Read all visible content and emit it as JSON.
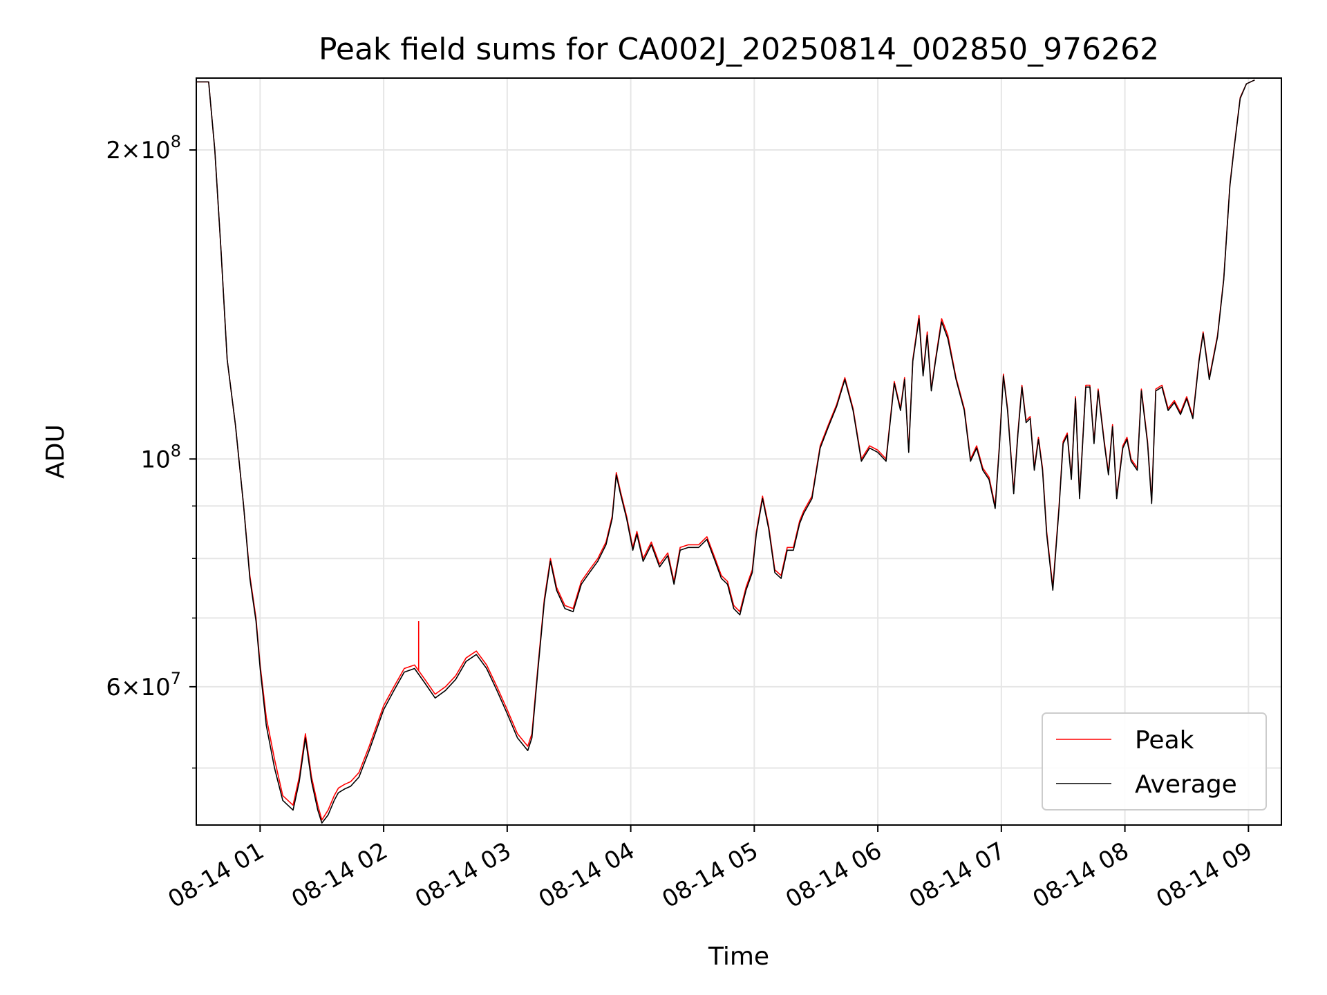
{
  "chart_data": {
    "type": "line",
    "title": "Peak field sums for CA002J_20250814_002850_976262",
    "xlabel": "Time",
    "ylabel": "ADU",
    "yscale": "log",
    "grid": true,
    "legend_position": "lower-right",
    "xlim": [
      "2025-08-14 00:29",
      "2025-08-14 09:16"
    ],
    "ylim": [
      44000000,
      235000000
    ],
    "x_ticks": [
      "08-14 01",
      "08-14 02",
      "08-14 03",
      "08-14 04",
      "08-14 05",
      "08-14 06",
      "08-14 07",
      "08-14 08",
      "08-14 09"
    ],
    "x_tick_times": [
      "2025-08-14 01:00",
      "2025-08-14 02:00",
      "2025-08-14 03:00",
      "2025-08-14 04:00",
      "2025-08-14 05:00",
      "2025-08-14 06:00",
      "2025-08-14 07:00",
      "2025-08-14 08:00",
      "2025-08-14 09:00"
    ],
    "y_major_ticks": [
      {
        "value": 200000000,
        "mantissa": "2",
        "exponent": "8"
      },
      {
        "value": 100000000,
        "mantissa": "",
        "exponent": "8"
      },
      {
        "value": 60000000,
        "mantissa": "6",
        "exponent": "7"
      }
    ],
    "y_minor_ticks": [
      50000000,
      70000000,
      80000000,
      90000000
    ],
    "times": [
      "2025-08-14 00:29",
      "2025-08-14 00:35",
      "2025-08-14 00:38",
      "2025-08-14 00:41",
      "2025-08-14 00:44",
      "2025-08-14 00:48",
      "2025-08-14 00:52",
      "2025-08-14 00:55",
      "2025-08-14 00:58",
      "2025-08-14 01:00",
      "2025-08-14 01:03",
      "2025-08-14 01:07",
      "2025-08-14 01:11",
      "2025-08-14 01:16",
      "2025-08-14 01:19",
      "2025-08-14 01:22",
      "2025-08-14 01:25",
      "2025-08-14 01:28",
      "2025-08-14 01:30",
      "2025-08-14 01:33",
      "2025-08-14 01:36",
      "2025-08-14 01:38",
      "2025-08-14 01:41",
      "2025-08-14 01:44",
      "2025-08-14 01:48",
      "2025-08-14 01:53",
      "2025-08-14 02:00",
      "2025-08-14 02:05",
      "2025-08-14 02:10",
      "2025-08-14 02:15",
      "2025-08-14 02:20",
      "2025-08-14 02:25",
      "2025-08-14 02:30",
      "2025-08-14 02:35",
      "2025-08-14 02:40",
      "2025-08-14 02:45",
      "2025-08-14 02:50",
      "2025-08-14 02:55",
      "2025-08-14 03:00",
      "2025-08-14 03:05",
      "2025-08-14 03:10",
      "2025-08-14 03:12",
      "2025-08-14 03:15",
      "2025-08-14 03:18",
      "2025-08-14 03:21",
      "2025-08-14 03:24",
      "2025-08-14 03:28",
      "2025-08-14 03:32",
      "2025-08-14 03:36",
      "2025-08-14 03:40",
      "2025-08-14 03:44",
      "2025-08-14 03:48",
      "2025-08-14 03:51",
      "2025-08-14 03:53",
      "2025-08-14 03:55",
      "2025-08-14 03:58",
      "2025-08-14 04:01",
      "2025-08-14 04:03",
      "2025-08-14 04:06",
      "2025-08-14 04:10",
      "2025-08-14 04:14",
      "2025-08-14 04:18",
      "2025-08-14 04:21",
      "2025-08-14 04:24",
      "2025-08-14 04:28",
      "2025-08-14 04:33",
      "2025-08-14 04:37",
      "2025-08-14 04:41",
      "2025-08-14 04:44",
      "2025-08-14 04:47",
      "2025-08-14 04:50",
      "2025-08-14 04:53",
      "2025-08-14 04:56",
      "2025-08-14 04:59",
      "2025-08-14 05:01",
      "2025-08-14 05:04",
      "2025-08-14 05:07",
      "2025-08-14 05:10",
      "2025-08-14 05:13",
      "2025-08-14 05:16",
      "2025-08-14 05:19",
      "2025-08-14 05:22",
      "2025-08-14 05:24",
      "2025-08-14 05:28",
      "2025-08-14 05:32",
      "2025-08-14 05:36",
      "2025-08-14 05:40",
      "2025-08-14 05:44",
      "2025-08-14 05:48",
      "2025-08-14 05:52",
      "2025-08-14 05:56",
      "2025-08-14 06:00",
      "2025-08-14 06:04",
      "2025-08-14 06:08",
      "2025-08-14 06:11",
      "2025-08-14 06:13",
      "2025-08-14 06:15",
      "2025-08-14 06:17",
      "2025-08-14 06:20",
      "2025-08-14 06:22",
      "2025-08-14 06:24",
      "2025-08-14 06:26",
      "2025-08-14 06:28",
      "2025-08-14 06:31",
      "2025-08-14 06:34",
      "2025-08-14 06:38",
      "2025-08-14 06:42",
      "2025-08-14 06:45",
      "2025-08-14 06:48",
      "2025-08-14 06:51",
      "2025-08-14 06:54",
      "2025-08-14 06:57",
      "2025-08-14 06:59",
      "2025-08-14 07:01",
      "2025-08-14 07:03",
      "2025-08-14 07:06",
      "2025-08-14 07:08",
      "2025-08-14 07:10",
      "2025-08-14 07:12",
      "2025-08-14 07:14",
      "2025-08-14 07:16",
      "2025-08-14 07:18",
      "2025-08-14 07:20",
      "2025-08-14 07:22",
      "2025-08-14 07:25",
      "2025-08-14 07:28",
      "2025-08-14 07:30",
      "2025-08-14 07:32",
      "2025-08-14 07:34",
      "2025-08-14 07:36",
      "2025-08-14 07:38",
      "2025-08-14 07:41",
      "2025-08-14 07:43",
      "2025-08-14 07:45",
      "2025-08-14 07:47",
      "2025-08-14 07:50",
      "2025-08-14 07:52",
      "2025-08-14 07:54",
      "2025-08-14 07:56",
      "2025-08-14 07:59",
      "2025-08-14 08:01",
      "2025-08-14 08:03",
      "2025-08-14 08:06",
      "2025-08-14 08:08",
      "2025-08-14 08:11",
      "2025-08-14 08:13",
      "2025-08-14 08:15",
      "2025-08-14 08:18",
      "2025-08-14 08:21",
      "2025-08-14 08:24",
      "2025-08-14 08:27",
      "2025-08-14 08:30",
      "2025-08-14 08:33",
      "2025-08-14 08:36",
      "2025-08-14 08:38",
      "2025-08-14 08:41",
      "2025-08-14 08:45",
      "2025-08-14 08:48",
      "2025-08-14 08:51",
      "2025-08-14 08:53",
      "2025-08-14 08:56",
      "2025-08-14 08:59",
      "2025-08-14 09:03",
      "2025-08-14 09:08",
      "2025-08-14 09:16"
    ],
    "series": [
      {
        "name": "Peak",
        "color": "#ff0000",
        "values": [
          233000000,
          233000000,
          200000000,
          160000000,
          125000000,
          108000000,
          90000000,
          77000000,
          70000000,
          63000000,
          56000000,
          51000000,
          47000000,
          46000000,
          49000000,
          54000000,
          49000000,
          46000000,
          44500000,
          45500000,
          47000000,
          47800000,
          48200000,
          48500000,
          49500000,
          52500000,
          57500000,
          60000000,
          62500000,
          63000000,
          61000000,
          59000000,
          60000000,
          61500000,
          64000000,
          65000000,
          63000000,
          60000000,
          57000000,
          54000000,
          52500000,
          54000000,
          63000000,
          73000000,
          80000000,
          75000000,
          72000000,
          71500000,
          76000000,
          78000000,
          80000000,
          83000000,
          88000000,
          97000000,
          93000000,
          88000000,
          82000000,
          85000000,
          80000000,
          83000000,
          79000000,
          81000000,
          76000000,
          82000000,
          82500000,
          82500000,
          84000000,
          80000000,
          77000000,
          76000000,
          72000000,
          71000000,
          75000000,
          78000000,
          85000000,
          92000000,
          86000000,
          78000000,
          77000000,
          82000000,
          82000000,
          87000000,
          89000000,
          92000000,
          103000000,
          108000000,
          113000000,
          120000000,
          112000000,
          100000000,
          103000000,
          102000000,
          100000000,
          119000000,
          112000000,
          120000000,
          102000000,
          125000000,
          138000000,
          121000000,
          133000000,
          117000000,
          125000000,
          137000000,
          132000000,
          120000000,
          112000000,
          100000000,
          103000000,
          98000000,
          96000000,
          90000000,
          103000000,
          121000000,
          112000000,
          93000000,
          106000000,
          118000000,
          109000000,
          110000000,
          98000000,
          105000000,
          98000000,
          85000000,
          75000000,
          90000000,
          104000000,
          106000000,
          96000000,
          115000000,
          92000000,
          118000000,
          118000000,
          104000000,
          117000000,
          104000000,
          97000000,
          108000000,
          92000000,
          103000000,
          105000000,
          100000000,
          98000000,
          117000000,
          104000000,
          91000000,
          117000000,
          118000000,
          112000000,
          114000000,
          111000000,
          115000000,
          110000000,
          125000000,
          133000000,
          120000000,
          132000000,
          150000000,
          185000000,
          201000000,
          225000000,
          232000000,
          234000000
        ]
      },
      {
        "name": "Average",
        "color": "#000000",
        "values": [
          233000000,
          233000000,
          200000000,
          160000000,
          125000000,
          108000000,
          90000000,
          76500000,
          69500000,
          62500000,
          55000000,
          50000000,
          46500000,
          45500000,
          48500000,
          53500000,
          48500000,
          45500000,
          44200000,
          45000000,
          46500000,
          47300000,
          47700000,
          48000000,
          49000000,
          52000000,
          57000000,
          59500000,
          62000000,
          62500000,
          60500000,
          58500000,
          59500000,
          61000000,
          63500000,
          64500000,
          62500000,
          59500000,
          56500000,
          53500000,
          52000000,
          53500000,
          62500000,
          72500000,
          79500000,
          74500000,
          71500000,
          71000000,
          75500000,
          77500000,
          79500000,
          82500000,
          87500000,
          96500000,
          92500000,
          87500000,
          81500000,
          84500000,
          79500000,
          82500000,
          78500000,
          80500000,
          75500000,
          81500000,
          82000000,
          82000000,
          83500000,
          79500000,
          76500000,
          75500000,
          71500000,
          70500000,
          74500000,
          77500000,
          84500000,
          91500000,
          85500000,
          77500000,
          76500000,
          81500000,
          81500000,
          86500000,
          88500000,
          91500000,
          102500000,
          107500000,
          112500000,
          119500000,
          111500000,
          99500000,
          102500000,
          101500000,
          99500000,
          118500000,
          111500000,
          119500000,
          101500000,
          124500000,
          137000000,
          120500000,
          132000000,
          116500000,
          124500000,
          136000000,
          131000000,
          119500000,
          111500000,
          99500000,
          102500000,
          97500000,
          95500000,
          89500000,
          102500000,
          120500000,
          111500000,
          92500000,
          105500000,
          117500000,
          108500000,
          109500000,
          97500000,
          104500000,
          97500000,
          84500000,
          74500000,
          89500000,
          103500000,
          105500000,
          95500000,
          114500000,
          91500000,
          117500000,
          117500000,
          103500000,
          116500000,
          103500000,
          96500000,
          107500000,
          91500000,
          102500000,
          104500000,
          99500000,
          97500000,
          116500000,
          103500000,
          90500000,
          116500000,
          117500000,
          111500000,
          113500000,
          110500000,
          114500000,
          109500000,
          124500000,
          132500000,
          119500000,
          131500000,
          149500000,
          184500000,
          200500000,
          224500000,
          232000000,
          234000000
        ]
      }
    ],
    "annotations": [
      {
        "series": "Peak",
        "time": "2025-08-14 02:17",
        "value": 69500000,
        "kind": "spike"
      }
    ]
  }
}
